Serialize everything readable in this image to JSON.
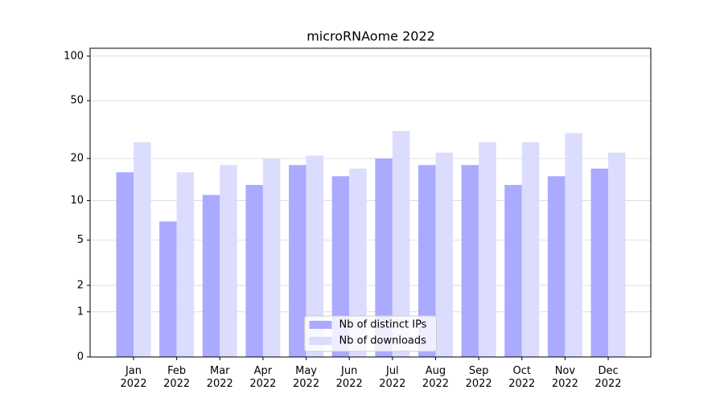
{
  "chart_data": {
    "type": "bar",
    "title": "microRNAome 2022",
    "categories": [
      "Jan 2022",
      "Feb 2022",
      "Mar 2022",
      "Apr 2022",
      "May 2022",
      "Jun 2022",
      "Jul 2022",
      "Aug 2022",
      "Sep 2022",
      "Oct 2022",
      "Nov 2022",
      "Dec 2022"
    ],
    "series": [
      {
        "name": "Nb of distinct IPs",
        "color": "#aaaaff",
        "values": [
          16,
          7,
          11,
          13,
          18,
          15,
          20,
          18,
          18,
          13,
          15,
          17
        ]
      },
      {
        "name": "Nb of downloads",
        "color": "#dcdcff",
        "values": [
          26,
          16,
          18,
          20,
          21,
          17,
          31,
          22,
          26,
          26,
          30,
          22
        ]
      }
    ],
    "yscale": "log1p",
    "ylim": [
      0,
      113
    ],
    "yticks": [
      0,
      1,
      2,
      5,
      10,
      20,
      50,
      100
    ],
    "grid": true,
    "legend": "lower center"
  }
}
